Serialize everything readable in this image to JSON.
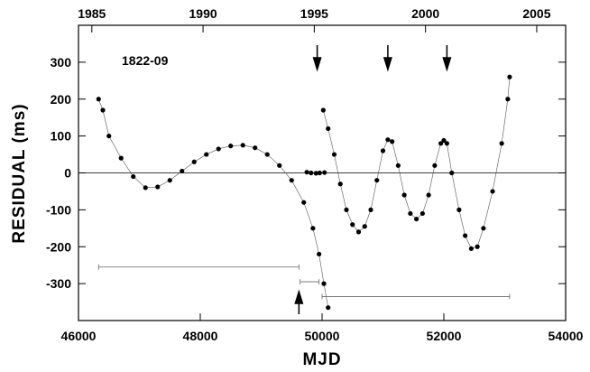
{
  "chart_data": {
    "type": "scatter",
    "annotation": "1822-09",
    "xlabel": "MJD",
    "ylabel": "RESIDUAL (ms)",
    "xlim": [
      46000,
      54000
    ],
    "xticks": [
      46000,
      48000,
      50000,
      52000,
      54000
    ],
    "ylim": [
      -400,
      400
    ],
    "yticks": [
      -300,
      -200,
      -100,
      0,
      100,
      200,
      300
    ],
    "x2lim": [
      1984.4,
      2006.3
    ],
    "x2ticks": [
      1985,
      1990,
      1995,
      2000,
      2005
    ],
    "color": "#000000",
    "series": [
      {
        "x": [
          46330,
          46400,
          46500,
          46700,
          46900,
          47100,
          47300,
          47500,
          47700,
          47900,
          48100,
          48300,
          48500,
          48700,
          48900,
          49100,
          49300,
          49500,
          49700,
          49850,
          49950,
          50030,
          50100
        ],
        "values": [
          200,
          170,
          100,
          40,
          -10,
          -40,
          -38,
          -20,
          5,
          30,
          50,
          65,
          73,
          75,
          68,
          50,
          20,
          -20,
          -80,
          -150,
          -220,
          -300,
          -365
        ]
      },
      {
        "x": [
          49750,
          49820,
          49900,
          49960,
          50040
        ],
        "values": [
          2,
          0,
          -1,
          0,
          1
        ]
      },
      {
        "x": [
          50020,
          50100,
          50200,
          50300,
          50400,
          50500,
          50600,
          50700,
          50800,
          50900,
          51000,
          51080,
          51150,
          51250,
          51350,
          51450,
          51550,
          51650,
          51750,
          51850,
          51950,
          52000,
          52050,
          52130,
          52250,
          52350,
          52450,
          52550,
          52650,
          52800,
          52950,
          53050,
          53080
        ],
        "values": [
          170,
          120,
          50,
          -30,
          -100,
          -140,
          -160,
          -145,
          -100,
          -20,
          60,
          90,
          85,
          20,
          -60,
          -110,
          -125,
          -110,
          -60,
          20,
          80,
          88,
          80,
          0,
          -100,
          -170,
          -205,
          -200,
          -150,
          -50,
          80,
          200,
          260
        ]
      }
    ],
    "ranges": [
      {
        "x": [
          46330,
          49620
        ],
        "y": -255
      },
      {
        "x": [
          49640,
          49950
        ],
        "y": -295
      },
      {
        "x": [
          50000,
          53080
        ],
        "y": -335
      }
    ],
    "arrows_down": [
      49920,
      51080,
      52050
    ],
    "arrows_up": [
      49620
    ]
  }
}
